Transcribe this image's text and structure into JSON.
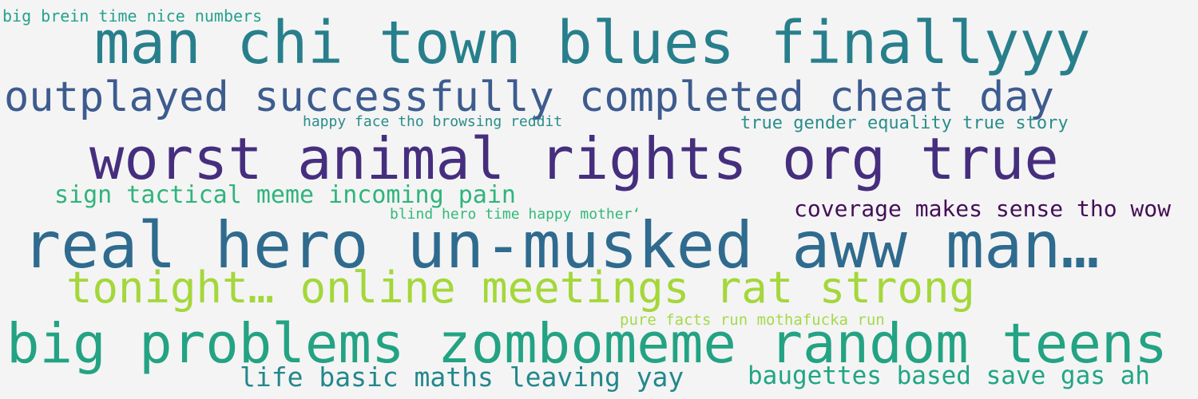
{
  "background": "#f4f4f4",
  "phrases": [
    {
      "text": "big brein time nice numbers",
      "color": "#25a18e"
    },
    {
      "text": "man chi town blues finallyyy",
      "color": "#287f8c"
    },
    {
      "text": "outplayed successfully completed cheat day",
      "color": "#3d5b8e"
    },
    {
      "text": "happy face tho browsing reddit",
      "color": "#2a8c8a"
    },
    {
      "text": "true gender equality true story",
      "color": "#2a8d8b"
    },
    {
      "text": "worst animal rights org true",
      "color": "#462e7e"
    },
    {
      "text": "sign tactical meme incoming pain",
      "color": "#2fb47c"
    },
    {
      "text": "blind hero time happy mother‘",
      "color": "#33b97a"
    },
    {
      "text": "coverage makes sense tho wow",
      "color": "#440f58"
    },
    {
      "text": "real hero un-musked aww man…",
      "color": "#2f6b8e"
    },
    {
      "text": "tonight… online meetings rat strong",
      "color": "#a4d73a"
    },
    {
      "text": "pure facts run mothafucka run",
      "color": "#a5d94a"
    },
    {
      "text": "big problems zombomeme random teens",
      "color": "#23a383"
    },
    {
      "text": "life basic maths leaving yay",
      "color": "#23878c"
    },
    {
      "text": "baugettes based save gas ah",
      "color": "#21a585"
    }
  ]
}
